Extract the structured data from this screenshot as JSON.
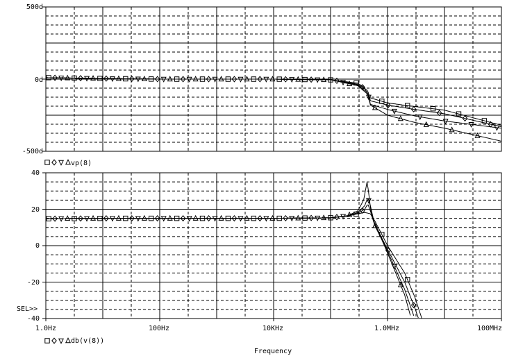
{
  "chart_data": [
    {
      "type": "line",
      "name": "phase",
      "xscale": "log",
      "xlim": [
        1,
        100000000
      ],
      "ylim": [
        -500,
        500
      ],
      "yticks": [
        {
          "value": 500,
          "label": "500d"
        },
        {
          "value": 0,
          "label": "0d"
        },
        {
          "value": -500,
          "label": "-500d"
        }
      ],
      "grid": true,
      "legend": {
        "placement": "bottom-left",
        "markers": [
          "square",
          "diamond",
          "triangle-down",
          "triangle-up"
        ],
        "label": "vp(8)"
      },
      "series": [
        {
          "marker": "square",
          "points": [
            [
              1,
              10
            ],
            [
              10,
              4
            ],
            [
              100,
              0
            ],
            [
              1000,
              0
            ],
            [
              10000,
              0
            ],
            [
              100000,
              -5
            ],
            [
              300000,
              -28
            ],
            [
              400000,
              -60
            ],
            [
              450000,
              -110
            ],
            [
              500000,
              -130
            ],
            [
              1000000,
              -165
            ],
            [
              3000000,
              -190
            ],
            [
              10000000,
              -215
            ],
            [
              100000000,
              -320
            ]
          ]
        },
        {
          "marker": "diamond",
          "points": [
            [
              1,
              10
            ],
            [
              10,
              4
            ],
            [
              100,
              0
            ],
            [
              1000,
              0
            ],
            [
              10000,
              0
            ],
            [
              100000,
              -5
            ],
            [
              300000,
              -35
            ],
            [
              450000,
              -80
            ],
            [
              500000,
              -150
            ],
            [
              1000000,
              -180
            ],
            [
              3000000,
              -210
            ],
            [
              10000000,
              -240
            ],
            [
              100000000,
              -330
            ]
          ]
        },
        {
          "marker": "triangle-down",
          "points": [
            [
              1,
              10
            ],
            [
              10,
              4
            ],
            [
              100,
              0
            ],
            [
              1000,
              0
            ],
            [
              10000,
              0
            ],
            [
              100000,
              -5
            ],
            [
              300000,
              -40
            ],
            [
              450000,
              -95
            ],
            [
              500000,
              -175
            ],
            [
              1000000,
              -210
            ],
            [
              3000000,
              -255
            ],
            [
              10000000,
              -290
            ],
            [
              100000000,
              -340
            ]
          ]
        },
        {
          "marker": "triangle-up",
          "points": [
            [
              1,
              10
            ],
            [
              10,
              4
            ],
            [
              100,
              0
            ],
            [
              1000,
              0
            ],
            [
              10000,
              0
            ],
            [
              100000,
              -5
            ],
            [
              300000,
              -45
            ],
            [
              450000,
              -105
            ],
            [
              500000,
              -180
            ],
            [
              1000000,
              -250
            ],
            [
              3000000,
              -300
            ],
            [
              10000000,
              -340
            ],
            [
              100000000,
              -430
            ]
          ]
        }
      ]
    },
    {
      "type": "line",
      "name": "magnitude",
      "xscale": "log",
      "xlim": [
        1,
        100000000
      ],
      "ylim": [
        -40,
        40
      ],
      "yticks": [
        {
          "value": 40,
          "label": "40"
        },
        {
          "value": 20,
          "label": "20"
        },
        {
          "value": 0,
          "label": "0"
        },
        {
          "value": -20,
          "label": "-20"
        },
        {
          "value": -40,
          "label": "-40"
        }
      ],
      "xticks": [
        {
          "value": 1,
          "label": "1.0Hz"
        },
        {
          "value": 100,
          "label": "100Hz"
        },
        {
          "value": 10000,
          "label": "10KHz"
        },
        {
          "value": 1000000,
          "label": "1.0MHz"
        },
        {
          "value": 100000000,
          "label": "100MHz"
        }
      ],
      "xlabel": "Frequency",
      "selection_marker": "SEL>>",
      "grid": true,
      "legend": {
        "placement": "bottom-left",
        "markers": [
          "square",
          "diamond",
          "triangle-down",
          "triangle-up"
        ],
        "label": "db(v(8))"
      },
      "series": [
        {
          "marker": "square",
          "points": [
            [
              1,
              14.8
            ],
            [
              10,
              15
            ],
            [
              100,
              15
            ],
            [
              10000,
              15
            ],
            [
              100000,
              15.3
            ],
            [
              200000,
              16.2
            ],
            [
              300000,
              17.5
            ],
            [
              400000,
              18.2
            ],
            [
              500000,
              17.5
            ],
            [
              600000,
              13.5
            ],
            [
              800000,
              6
            ],
            [
              1000000,
              0
            ],
            [
              2000000,
              -15
            ],
            [
              3000000,
              -28
            ],
            [
              4000000,
              -40
            ]
          ]
        },
        {
          "marker": "diamond",
          "points": [
            [
              1,
              14.8
            ],
            [
              10,
              15
            ],
            [
              100,
              15
            ],
            [
              10000,
              15
            ],
            [
              100000,
              15.3
            ],
            [
              200000,
              16.3
            ],
            [
              300000,
              17.8
            ],
            [
              400000,
              20
            ],
            [
              450000,
              23
            ],
            [
              500000,
              19
            ],
            [
              600000,
              12
            ],
            [
              800000,
              4
            ],
            [
              1000000,
              -2
            ],
            [
              2000000,
              -20
            ],
            [
              3000000,
              -34
            ],
            [
              3500000,
              -40
            ]
          ]
        },
        {
          "marker": "triangle-down",
          "points": [
            [
              1,
              14.8
            ],
            [
              10,
              15
            ],
            [
              100,
              15
            ],
            [
              10000,
              15
            ],
            [
              100000,
              15.3
            ],
            [
              200000,
              16.4
            ],
            [
              300000,
              18.2
            ],
            [
              400000,
              22
            ],
            [
              450000,
              26.5
            ],
            [
              500000,
              22
            ],
            [
              600000,
              11
            ],
            [
              800000,
              3.5
            ],
            [
              1000000,
              -3
            ],
            [
              2000000,
              -24
            ],
            [
              3000000,
              -40
            ]
          ]
        },
        {
          "marker": "triangle-up",
          "points": [
            [
              1,
              14.8
            ],
            [
              10,
              15
            ],
            [
              100,
              15
            ],
            [
              10000,
              15
            ],
            [
              100000,
              15.3
            ],
            [
              200000,
              16.5
            ],
            [
              300000,
              19
            ],
            [
              380000,
              25
            ],
            [
              420000,
              32
            ],
            [
              440000,
              35.5
            ],
            [
              470000,
              28
            ],
            [
              520000,
              17
            ],
            [
              600000,
              11
            ],
            [
              800000,
              3
            ],
            [
              1000000,
              -4
            ],
            [
              2000000,
              -27
            ],
            [
              2600000,
              -40
            ]
          ]
        }
      ]
    }
  ]
}
